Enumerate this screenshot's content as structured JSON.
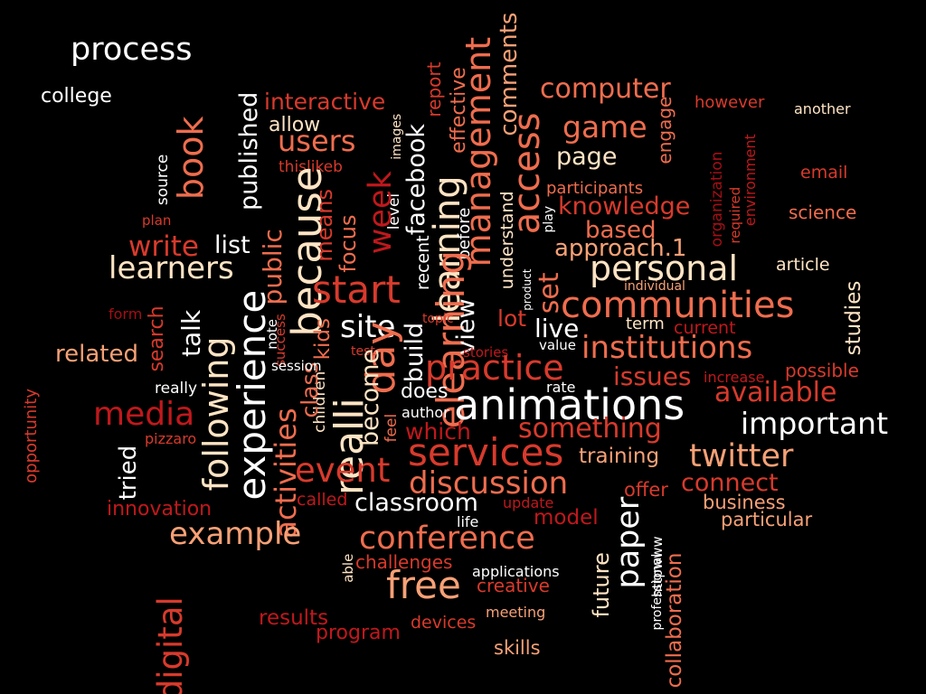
{
  "colors": {
    "background": "#000000",
    "white": "#ffffff",
    "cream": "#ffe4c4",
    "peach": "#f7a176",
    "salmon": "#ef6d4e",
    "red": "#d83a2c",
    "crimson": "#c0181c",
    "darkred": "#a50f15"
  },
  "words": [
    "process",
    "college",
    "interactive",
    "report",
    "effective",
    "comments",
    "computer",
    "however",
    "another",
    "published",
    "allow",
    "users",
    "images",
    "management",
    "access",
    "game",
    "page",
    "engage",
    "book",
    "source",
    "thislikeb",
    "facebook",
    "learning",
    "organization",
    "environment",
    "email",
    "participants",
    "knowledge",
    "because",
    "public",
    "level",
    "means",
    "focus",
    "week",
    "recent",
    "before",
    "understand",
    "play",
    "plan",
    "write",
    "list",
    "based",
    "science",
    "learners",
    "approach.1",
    "personal",
    "article",
    "start",
    "product",
    "set",
    "required",
    "individual",
    "studies",
    "communities",
    "form",
    "search",
    "talk",
    "success",
    "note",
    "following",
    "experience",
    "site",
    "build",
    "elearning",
    "view",
    "lot",
    "live",
    "term",
    "current",
    "kids",
    "children",
    "class",
    "activities",
    "really",
    "day",
    "topic",
    "stories",
    "value",
    "institutions",
    "related",
    "test",
    "session",
    "become",
    "practice",
    "does",
    "increase",
    "possible",
    "issues",
    "rate",
    "opportunity",
    "media",
    "realli",
    "available",
    "feel",
    "author",
    "animations",
    "important",
    "pizzaro",
    "tried",
    "which",
    "something",
    "event",
    "services",
    "training",
    "twitter",
    "discussion",
    "connect",
    "offer",
    "innovation",
    "called",
    "classroom",
    "update",
    "business",
    "particular",
    "model",
    "life",
    "example",
    "conference",
    "paper",
    "httpwww",
    "able",
    "challenges",
    "applications",
    "digital",
    "free",
    "creative",
    "future",
    "professional",
    "collaboration",
    "results",
    "devices",
    "meeting",
    "program",
    "skills"
  ]
}
